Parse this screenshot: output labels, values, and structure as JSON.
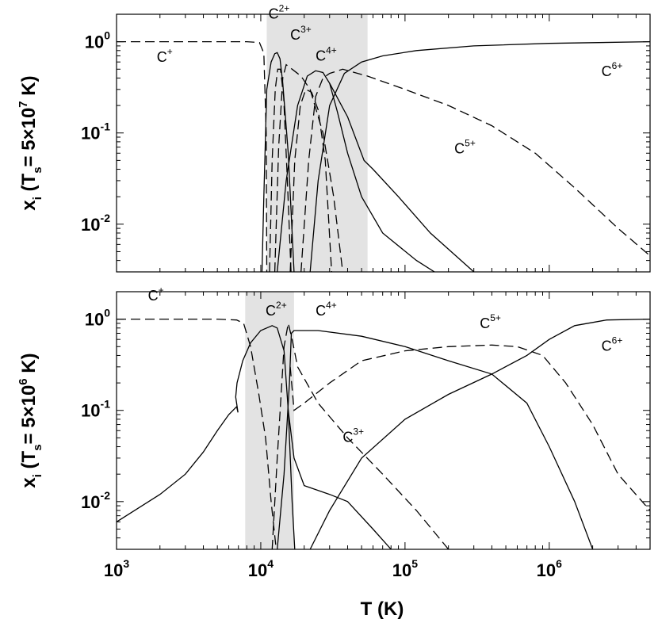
{
  "chart_data": [
    {
      "panel": "top",
      "type": "line",
      "x_scale": "log",
      "y_scale": "log",
      "xlim": [
        1000,
        5000000
      ],
      "ylim": [
        0.003,
        2
      ],
      "ylabel_main": "x",
      "ylabel_sub": "i",
      "ylabel_param": "(T",
      "ylabel_param_sub": "s",
      "ylabel_param_value": "= 5×10",
      "ylabel_param_exp": "7",
      "ylabel_param_unit": " K)",
      "y_ticks": [
        {
          "value": 1,
          "base": "10",
          "exp": "0"
        },
        {
          "value": 0.1,
          "base": "10",
          "exp": "-1"
        },
        {
          "value": 0.01,
          "base": "10",
          "exp": "-2"
        }
      ],
      "shaded_band": [
        11000,
        55000
      ],
      "ion_labels": [
        {
          "base": "C",
          "sup": "+",
          "x": 1900,
          "y": 0.6
        },
        {
          "base": "C",
          "sup": "2+",
          "x": 11300,
          "y": 1.8
        },
        {
          "base": "C",
          "sup": "3+",
          "x": 16000,
          "y": 1.05
        },
        {
          "base": "C",
          "sup": "4+",
          "x": 24000,
          "y": 0.62
        },
        {
          "base": "C",
          "sup": "6+",
          "x": 2300000,
          "y": 0.42
        },
        {
          "base": "C",
          "sup": "5+",
          "x": 220000,
          "y": 0.06
        }
      ],
      "series": [
        {
          "name": "C+",
          "style": "dashed",
          "points": [
            [
              1000,
              1.0
            ],
            [
              8000,
              1.0
            ],
            [
              9800,
              0.98
            ],
            [
              10500,
              0.75
            ],
            [
              10900,
              0.1
            ],
            [
              11000,
              0.003
            ]
          ]
        },
        {
          "name": "C2+ rise",
          "style": "solid",
          "points": [
            [
              10200,
              0.003
            ],
            [
              10500,
              0.02
            ],
            [
              11000,
              0.3
            ],
            [
              11800,
              0.6
            ],
            [
              12500,
              0.74
            ],
            [
              13000,
              0.76
            ],
            [
              13600,
              0.65
            ],
            [
              14200,
              0.35
            ],
            [
              15500,
              0.06
            ],
            [
              17000,
              0.003
            ]
          ]
        },
        {
          "name": "C2+ inner",
          "style": "dashed",
          "points": [
            [
              11500,
              0.003
            ],
            [
              12000,
              0.05
            ],
            [
              12600,
              0.3
            ],
            [
              13100,
              0.5
            ],
            [
              13700,
              0.5
            ],
            [
              14400,
              0.25
            ],
            [
              15300,
              0.03
            ],
            [
              16200,
              0.003
            ]
          ]
        },
        {
          "name": "C3+ rise",
          "style": "dashed",
          "points": [
            [
              12500,
              0.003
            ],
            [
              13300,
              0.07
            ],
            [
              14200,
              0.4
            ],
            [
              15000,
              0.56
            ],
            [
              16500,
              0.5
            ],
            [
              19000,
              0.42
            ],
            [
              22000,
              0.3
            ],
            [
              27000,
              0.1
            ],
            [
              32000,
              0.02
            ],
            [
              37000,
              0.003
            ]
          ]
        },
        {
          "name": "C3+ inner",
          "style": "dashed",
          "points": [
            [
              16000,
              0.003
            ],
            [
              17200,
              0.05
            ],
            [
              18800,
              0.2
            ],
            [
              20500,
              0.3
            ],
            [
              22500,
              0.28
            ],
            [
              25000,
              0.18
            ],
            [
              28000,
              0.05
            ],
            [
              31000,
              0.003
            ]
          ]
        },
        {
          "name": "C4+",
          "style": "solid",
          "points": [
            [
              13000,
              0.003
            ],
            [
              15000,
              0.03
            ],
            [
              18000,
              0.2
            ],
            [
              21000,
              0.42
            ],
            [
              24000,
              0.48
            ],
            [
              27000,
              0.46
            ],
            [
              30000,
              0.35
            ],
            [
              34000,
              0.17
            ],
            [
              40000,
              0.06
            ],
            [
              50000,
              0.02
            ],
            [
              70000,
              0.008
            ],
            [
              120000,
              0.004
            ],
            [
              160000,
              0.003
            ]
          ]
        },
        {
          "name": "C5+",
          "style": "dashed",
          "points": [
            [
              19000,
              0.003
            ],
            [
              21500,
              0.05
            ],
            [
              24000,
              0.25
            ],
            [
              27000,
              0.4
            ],
            [
              30000,
              0.45
            ],
            [
              37000,
              0.5
            ],
            [
              55000,
              0.42
            ],
            [
              100000,
              0.3
            ],
            [
              200000,
              0.2
            ],
            [
              400000,
              0.12
            ],
            [
              800000,
              0.06
            ],
            [
              1500000,
              0.025
            ],
            [
              3000000,
              0.009
            ],
            [
              5000000,
              0.0045
            ]
          ]
        },
        {
          "name": "C6+",
          "style": "solid",
          "points": [
            [
              22000,
              0.003
            ],
            [
              25000,
              0.03
            ],
            [
              30000,
              0.2
            ],
            [
              38000,
              0.45
            ],
            [
              50000,
              0.6
            ],
            [
              70000,
              0.7
            ],
            [
              120000,
              0.8
            ],
            [
              300000,
              0.9
            ],
            [
              1000000,
              0.96
            ],
            [
              5000000,
              1.0
            ]
          ]
        },
        {
          "name": "C4+ tail",
          "style": "solid",
          "points": [
            [
              30000,
              0.35
            ],
            [
              40000,
              0.15
            ],
            [
              52000,
              0.05
            ],
            [
              60000,
              0.04
            ],
            [
              90000,
              0.02
            ],
            [
              150000,
              0.008
            ],
            [
              300000,
              0.003
            ]
          ]
        }
      ]
    },
    {
      "panel": "bottom",
      "type": "line",
      "x_scale": "log",
      "y_scale": "log",
      "xlim": [
        1000,
        5000000
      ],
      "ylim": [
        0.003,
        2
      ],
      "ylabel_main": "x",
      "ylabel_sub": "i",
      "ylabel_param": "(T",
      "ylabel_param_sub": "s",
      "ylabel_param_value": "= 5×10",
      "ylabel_param_exp": "6",
      "ylabel_param_unit": " K)",
      "y_ticks": [
        {
          "value": 1,
          "base": "10",
          "exp": "0"
        },
        {
          "value": 0.1,
          "base": "10",
          "exp": "-1"
        },
        {
          "value": 0.01,
          "base": "10",
          "exp": "-2"
        }
      ],
      "x_ticks": [
        {
          "value": 1000,
          "base": "10",
          "exp": "3"
        },
        {
          "value": 10000,
          "base": "10",
          "exp": "4"
        },
        {
          "value": 100000,
          "base": "10",
          "exp": "5"
        },
        {
          "value": 1000000,
          "base": "10",
          "exp": "6"
        }
      ],
      "xlabel": "T  (K)",
      "shaded_band": [
        7800,
        17000
      ],
      "ion_labels": [
        {
          "base": "C",
          "sup": "+",
          "x": 1650,
          "y": 1.6
        },
        {
          "base": "C",
          "sup": "2+",
          "x": 10800,
          "y": 1.1
        },
        {
          "base": "C",
          "sup": "4+",
          "x": 24000,
          "y": 1.1
        },
        {
          "base": "C",
          "sup": "5+",
          "x": 330000,
          "y": 0.8
        },
        {
          "base": "C",
          "sup": "6+",
          "x": 2300000,
          "y": 0.45
        },
        {
          "base": "C",
          "sup": "3+",
          "x": 37000,
          "y": 0.045
        }
      ],
      "series": [
        {
          "name": "C+",
          "style": "dashed",
          "points": [
            [
              1000,
              1.0
            ],
            [
              5000,
              1.0
            ],
            [
              6800,
              0.98
            ],
            [
              7600,
              0.9
            ],
            [
              8500,
              0.5
            ],
            [
              9700,
              0.15
            ],
            [
              10800,
              0.05
            ],
            [
              11800,
              0.01
            ],
            [
              12800,
              0.003
            ]
          ]
        },
        {
          "name": "C2+",
          "style": "solid",
          "points": [
            [
              1000,
              0.006
            ],
            [
              2000,
              0.012
            ],
            [
              3000,
              0.02
            ],
            [
              4000,
              0.035
            ],
            [
              5000,
              0.06
            ],
            [
              6000,
              0.09
            ],
            [
              6800,
              0.11
            ],
            [
              6950,
              0.095
            ],
            [
              6700,
              0.14
            ],
            [
              6850,
              0.2
            ],
            [
              7500,
              0.35
            ],
            [
              8500,
              0.55
            ],
            [
              10000,
              0.75
            ],
            [
              12000,
              0.85
            ],
            [
              13000,
              0.8
            ],
            [
              14500,
              0.45
            ],
            [
              15500,
              0.1
            ],
            [
              16500,
              0.01
            ],
            [
              17200,
              0.003
            ]
          ]
        },
        {
          "name": "C3+",
          "style": "dashed",
          "points": [
            [
              12000,
              0.003
            ],
            [
              13000,
              0.03
            ],
            [
              14500,
              0.5
            ],
            [
              15500,
              0.9
            ],
            [
              16500,
              0.6
            ],
            [
              18000,
              0.3
            ],
            [
              25000,
              0.12
            ],
            [
              40000,
              0.05
            ],
            [
              70000,
              0.02
            ],
            [
              120000,
              0.008
            ],
            [
              200000,
              0.003
            ]
          ]
        },
        {
          "name": "C4+",
          "style": "solid",
          "points": [
            [
              13000,
              0.003
            ],
            [
              14500,
              0.02
            ],
            [
              15800,
              0.2
            ],
            [
              16300,
              0.7
            ],
            [
              17000,
              0.75
            ],
            [
              25000,
              0.75
            ],
            [
              50000,
              0.65
            ],
            [
              100000,
              0.5
            ],
            [
              200000,
              0.35
            ],
            [
              400000,
              0.25
            ],
            [
              700000,
              0.12
            ],
            [
              1000000,
              0.04
            ],
            [
              1500000,
              0.01
            ],
            [
              2000000,
              0.003
            ]
          ]
        },
        {
          "name": "C5+",
          "style": "dashed",
          "points": [
            [
              16000,
              0.3
            ],
            [
              17000,
              0.1
            ],
            [
              20000,
              0.12
            ],
            [
              30000,
              0.2
            ],
            [
              50000,
              0.35
            ],
            [
              100000,
              0.45
            ],
            [
              200000,
              0.5
            ],
            [
              400000,
              0.52
            ],
            [
              600000,
              0.5
            ],
            [
              900000,
              0.4
            ],
            [
              1300000,
              0.2
            ],
            [
              2000000,
              0.07
            ],
            [
              3000000,
              0.02
            ],
            [
              5000000,
              0.008
            ]
          ]
        },
        {
          "name": "C6+",
          "style": "solid",
          "points": [
            [
              22000,
              0.003
            ],
            [
              30000,
              0.008
            ],
            [
              50000,
              0.03
            ],
            [
              100000,
              0.08
            ],
            [
              200000,
              0.15
            ],
            [
              400000,
              0.25
            ],
            [
              700000,
              0.4
            ],
            [
              1000000,
              0.6
            ],
            [
              1500000,
              0.85
            ],
            [
              2500000,
              0.98
            ],
            [
              5000000,
              1.0
            ]
          ]
        },
        {
          "name": "C2+ tail",
          "style": "solid",
          "points": [
            [
              15500,
              0.1
            ],
            [
              17000,
              0.03
            ],
            [
              20000,
              0.015
            ],
            [
              30000,
              0.012
            ],
            [
              40000,
              0.01
            ],
            [
              60000,
              0.005
            ],
            [
              80000,
              0.003
            ]
          ]
        }
      ]
    }
  ]
}
